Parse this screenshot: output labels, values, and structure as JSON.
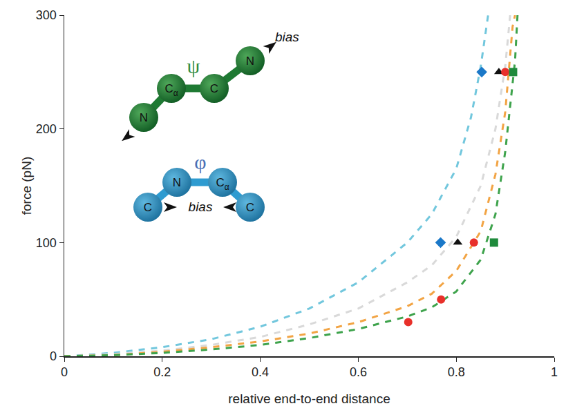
{
  "chart_data": {
    "type": "scatter",
    "x_label": "relative end-to-end distance",
    "y_label": "force (pN)",
    "xlim": [
      0,
      1
    ],
    "xticks": [
      0,
      0.2,
      0.4,
      0.6,
      0.8,
      1
    ],
    "ylim": [
      0,
      300
    ],
    "yticks": [
      0,
      100,
      200,
      300
    ],
    "grid": false,
    "series": [
      {
        "type": "line",
        "color": "#72c7dd",
        "line_style": "dash",
        "x": [
          0,
          0.1,
          0.2,
          0.3,
          0.4,
          0.5,
          0.6,
          0.7,
          0.75,
          0.8,
          0.83,
          0.85,
          0.865
        ],
        "values": [
          0,
          3,
          8,
          15,
          26,
          42,
          65,
          100,
          125,
          165,
          210,
          255,
          300
        ]
      },
      {
        "type": "line",
        "color": "#d9d9d9",
        "line_style": "dash",
        "x": [
          0,
          0.1,
          0.2,
          0.3,
          0.4,
          0.5,
          0.6,
          0.7,
          0.75,
          0.8,
          0.85,
          0.88,
          0.9,
          0.91
        ],
        "values": [
          0,
          2,
          5,
          10,
          17,
          28,
          42,
          65,
          80,
          105,
          150,
          200,
          255,
          300
        ]
      },
      {
        "type": "line",
        "color": "#f2a444",
        "line_style": "dash",
        "x": [
          0,
          0.1,
          0.2,
          0.3,
          0.4,
          0.5,
          0.6,
          0.7,
          0.75,
          0.8,
          0.85,
          0.88,
          0.9,
          0.915,
          0.92
        ],
        "values": [
          0,
          1,
          4,
          8,
          13,
          20,
          30,
          44,
          55,
          75,
          110,
          160,
          215,
          290,
          300
        ]
      },
      {
        "type": "line",
        "color": "#3ea34c",
        "line_style": "dash",
        "x": [
          0,
          0.1,
          0.2,
          0.3,
          0.4,
          0.5,
          0.6,
          0.7,
          0.75,
          0.8,
          0.85,
          0.88,
          0.9,
          0.92,
          0.925
        ],
        "values": [
          0,
          1,
          3,
          6,
          10,
          16,
          24,
          35,
          43,
          57,
          85,
          125,
          180,
          260,
          300
        ]
      },
      {
        "type": "scatter",
        "color": "#1b78c8",
        "marker": "diamond",
        "x": [
          0.768,
          0.852
        ],
        "values": [
          100,
          250
        ]
      },
      {
        "type": "scatter",
        "color": "#111111",
        "marker": "triangle-up",
        "x": [
          0.803,
          0.887
        ],
        "values": [
          100,
          250
        ]
      },
      {
        "type": "scatter",
        "color": "#e8302a",
        "marker": "circle",
        "x": [
          0.702,
          0.769,
          0.836,
          0.9
        ],
        "values": [
          30,
          50,
          100,
          250
        ]
      },
      {
        "type": "scatter",
        "color": "#1f8a3c",
        "marker": "square",
        "x": [
          0.877,
          0.916
        ],
        "values": [
          100,
          250
        ]
      }
    ]
  },
  "inset": {
    "psi": {
      "label": "ψ",
      "atoms": [
        "N",
        "Cα",
        "C",
        "N"
      ],
      "bias": "bias"
    },
    "phi": {
      "label": "φ",
      "atoms": [
        "C",
        "N",
        "Cα",
        "C"
      ],
      "bias": "bias"
    }
  }
}
